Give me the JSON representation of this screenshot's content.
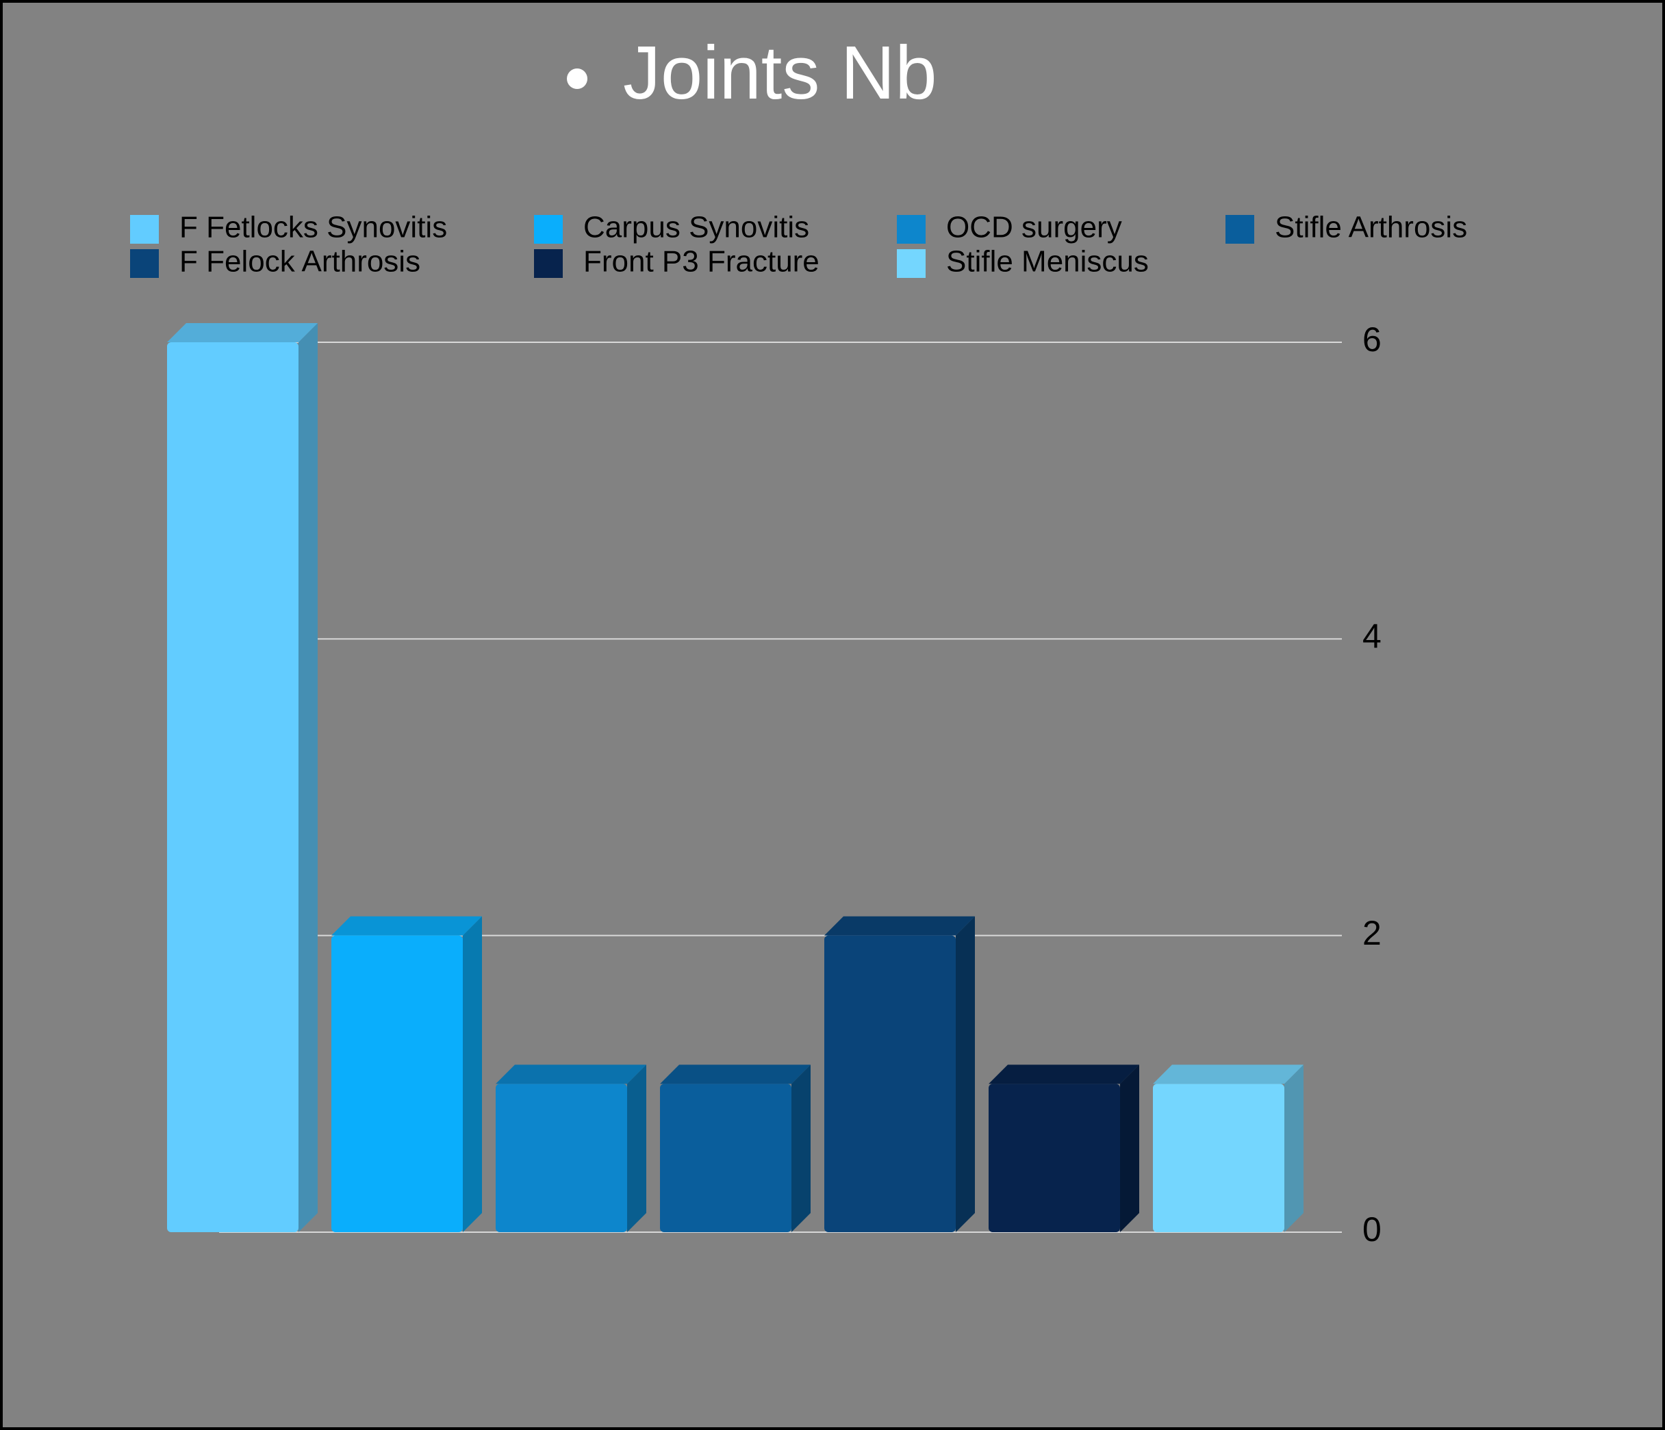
{
  "chart_data": {
    "type": "bar",
    "title": "Joints Nb",
    "series": [
      {
        "name": "F Fetlocks Synovitis",
        "color": "#62ccff",
        "values": [
          6
        ]
      },
      {
        "name": "Carpus Synovitis",
        "color": "#0aaefc",
        "values": [
          2
        ]
      },
      {
        "name": "OCD surgery",
        "color": "#0d86cc",
        "values": [
          1
        ]
      },
      {
        "name": "Stifle Arthrosis",
        "color": "#0a5e9c",
        "values": [
          1
        ]
      },
      {
        "name": "F Felock Arthrosis",
        "color": "#0a4479",
        "values": [
          2
        ]
      },
      {
        "name": "Front P3 Fracture",
        "color": "#07234d",
        "values": [
          1
        ]
      },
      {
        "name": "Stifle Meniscus",
        "color": "#74d6fe",
        "values": [
          1
        ]
      }
    ],
    "ylim": [
      0,
      6
    ],
    "yticks": [
      0,
      2,
      4,
      6
    ],
    "grid": true
  }
}
